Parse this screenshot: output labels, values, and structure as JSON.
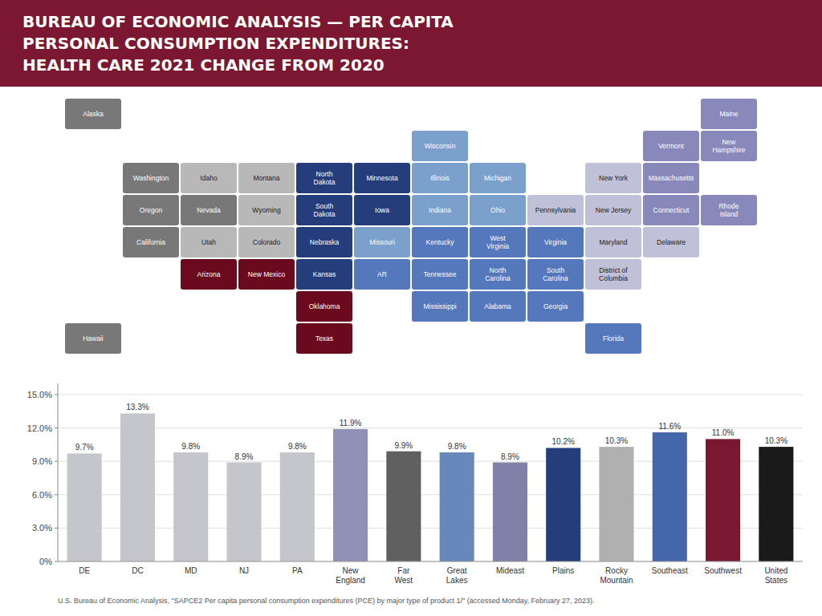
{
  "chart_data": [
    {
      "type": "map",
      "title": "BUREAU OF ECONOMIC ANALYSIS — PER CAPITA\nPERSONAL CONSUMPTION EXPENDITURES:\nHEALTH CARE 2021 CHANGE FROM 2020",
      "categories": [
        "Washington",
        "Oregon",
        "California",
        "Nevada",
        "Idaho",
        "Montana",
        "Wyoming",
        "Utah",
        "Colorado",
        "Arizona",
        "New Mexico",
        "Texas",
        "Oklahoma",
        "Kansas",
        "Nebraska",
        "South Dakota",
        "North Dakota",
        "Minnesota",
        "Iowa",
        "Missouri",
        "Wisconsin",
        "Illinois",
        "Michigan",
        "Indiana",
        "Ohio",
        "Kentucky",
        "Tennessee",
        "Mississippi",
        "Alabama",
        "Georgia",
        "Florida",
        "South Carolina",
        "North Carolina",
        "Virginia",
        "West Virginia",
        "Maryland",
        "Delaware",
        "New Jersey",
        "Pennsylvania",
        "New York",
        "Connecticut",
        "Rhode Island",
        "Massachusetts",
        "Vermont",
        "New Hampshire",
        "Maine",
        "Alaska",
        "Hawaii",
        "District of Columbia",
        "AR"
      ],
      "colors": [
        "#787878",
        "#787878",
        "#787878",
        "#787878",
        "#B8B8B8",
        "#B8B8B8",
        "#B8B8B8",
        "#B8B8B8",
        "#B8B8B8",
        "#6B0A1E",
        "#6B0A1E",
        "#6B0A1E",
        "#6B0A1E",
        "#253D7A",
        "#253D7A",
        "#253D7A",
        "#253D7A",
        "#253D7A",
        "#253D7A",
        "#7BA0CC",
        "#7BA0CC",
        "#7BA0CC",
        "#7BA0CC",
        "#7BA0CC",
        "#7BA0CC",
        "#5577BB",
        "#5577BB",
        "#5577BB",
        "#5577BB",
        "#5577BB",
        "#5577BB",
        "#5577BB",
        "#5577BB",
        "#5577BB",
        "#5577BB",
        "#C0C0D8",
        "#C0C0D8",
        "#C0C0D8",
        "#C0C0D8",
        "#C0C0D8",
        "#8888BB",
        "#8888BB",
        "#8888BB",
        "#8888BB",
        "#8888BB",
        "#8888BB",
        "#787878",
        "#787878",
        "#C0C0D8",
        "#5577BB"
      ]
    },
    {
      "type": "bar",
      "categories": [
        "DE",
        "DC",
        "MD",
        "NJ",
        "PA",
        "New\nEngland",
        "Far\nWest",
        "Great\nLakes",
        "Mideast",
        "Plains",
        "Rocky\nMountain",
        "Southeast",
        "Southwest",
        "United\nStates"
      ],
      "values": [
        9.7,
        13.3,
        9.8,
        8.9,
        9.8,
        11.9,
        9.9,
        9.8,
        8.9,
        10.2,
        10.3,
        11.6,
        11.0,
        10.3
      ],
      "value_labels": [
        "9.7%",
        "13.3%",
        "9.8%",
        "8.9%",
        "9.8%",
        "11.9%",
        "9.9%",
        "9.8%",
        "8.9%",
        "10.2%",
        "10.3%",
        "11.6%",
        "11.0%",
        "10.3%"
      ],
      "colors": [
        "#C5C5CC",
        "#C5C5CC",
        "#C5C5CC",
        "#C5C5CC",
        "#C5C5CC",
        "#9090B8",
        "#606060",
        "#6688BB",
        "#8080A8",
        "#253D7A",
        "#B0B0B0",
        "#4466AA",
        "#7B1730",
        "#1A1A1A"
      ],
      "ylim": [
        0,
        16
      ],
      "yticks": [
        {
          "value": 0,
          "label": "0%"
        },
        {
          "value": 3,
          "label": "3.0%"
        },
        {
          "value": 6,
          "label": "6.0%"
        },
        {
          "value": 9,
          "label": "9.0%"
        },
        {
          "value": 12,
          "label": "12.0%"
        },
        {
          "value": 15,
          "label": "15.0%"
        }
      ],
      "grid": true,
      "data_labels": true,
      "annotations": [
        "U.S. Bureau of Economic Analysis, \"SAPCE2 Per capita personal consumption expenditures (PCE) by major type of product 1/\" (accessed Monday, February 27, 2023)."
      ]
    }
  ]
}
